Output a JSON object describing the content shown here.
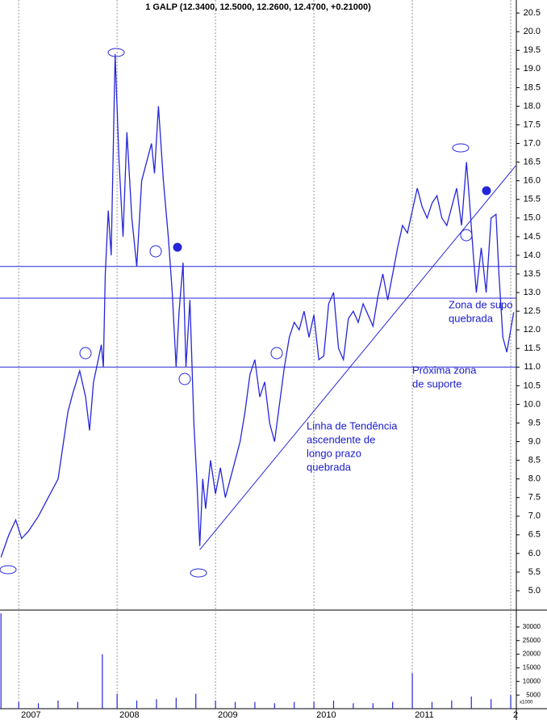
{
  "chart_data": [
    {
      "type": "line",
      "title": "1 GALP (12.3400, 12.5000, 12.2600, 12.4700, +0.21000)",
      "x": [
        2006.82,
        2006.9,
        2006.97,
        2007.03,
        2007.1,
        2007.2,
        2007.3,
        2007.4,
        2007.45,
        2007.5,
        2007.55,
        2007.62,
        2007.68,
        2007.72,
        2007.76,
        2007.8,
        2007.84,
        2007.86,
        2007.88,
        2007.91,
        2007.94,
        2007.98,
        2008.02,
        2008.06,
        2008.1,
        2008.15,
        2008.2,
        2008.25,
        2008.3,
        2008.35,
        2008.38,
        2008.42,
        2008.47,
        2008.52,
        2008.56,
        2008.6,
        2008.63,
        2008.67,
        2008.7,
        2008.74,
        2008.78,
        2008.81,
        2008.84,
        2008.87,
        2008.9,
        2008.95,
        2009.0,
        2009.05,
        2009.1,
        2009.17,
        2009.25,
        2009.3,
        2009.35,
        2009.4,
        2009.45,
        2009.5,
        2009.55,
        2009.6,
        2009.65,
        2009.7,
        2009.75,
        2009.8,
        2009.85,
        2009.9,
        2009.95,
        2010.0,
        2010.05,
        2010.1,
        2010.15,
        2010.2,
        2010.25,
        2010.3,
        2010.35,
        2010.4,
        2010.45,
        2010.5,
        2010.55,
        2010.6,
        2010.65,
        2010.7,
        2010.75,
        2010.8,
        2010.85,
        2010.9,
        2010.95,
        2011.0,
        2011.05,
        2011.1,
        2011.15,
        2011.2,
        2011.25,
        2011.3,
        2011.35,
        2011.4,
        2011.45,
        2011.5,
        2011.55,
        2011.58,
        2011.62,
        2011.65,
        2011.7,
        2011.75,
        2011.8,
        2011.85,
        2011.88,
        2011.92,
        2011.96,
        2012.0,
        2012.03
      ],
      "series": [
        {
          "color": "#2626d9",
          "values": [
            5.9,
            6.5,
            6.9,
            6.4,
            6.6,
            7.0,
            7.5,
            8.0,
            8.9,
            9.8,
            10.3,
            10.9,
            10.2,
            9.3,
            10.6,
            11.1,
            11.6,
            11.0,
            13.5,
            15.2,
            14.0,
            19.4,
            16.5,
            14.5,
            17.3,
            15.0,
            13.7,
            16.0,
            16.5,
            17.0,
            16.2,
            18.0,
            16.0,
            14.5,
            13.0,
            11.0,
            12.5,
            13.8,
            11.0,
            12.8,
            9.5,
            8.0,
            6.2,
            8.0,
            7.2,
            8.5,
            7.6,
            8.3,
            7.5,
            8.2,
            9.0,
            9.8,
            10.8,
            11.2,
            10.2,
            10.6,
            9.5,
            9.0,
            10.0,
            11.0,
            11.8,
            12.2,
            12.0,
            12.5,
            11.8,
            12.4,
            11.2,
            11.3,
            12.7,
            13.0,
            11.5,
            11.2,
            12.3,
            12.5,
            12.2,
            12.7,
            12.4,
            12.1,
            12.9,
            13.5,
            12.8,
            13.5,
            14.2,
            14.8,
            14.6,
            15.2,
            15.8,
            15.3,
            15.0,
            15.4,
            15.6,
            15.0,
            14.8,
            15.3,
            15.8,
            14.8,
            16.5,
            15.5,
            14.0,
            13.0,
            14.2,
            13.0,
            15.0,
            15.1,
            13.5,
            11.8,
            11.4,
            12.0,
            12.47
          ]
        }
      ],
      "xlim": [
        2006.81,
        2012.057
      ],
      "xticks": [
        2007,
        2008,
        2009,
        2010,
        2011,
        {
          "value": 2012,
          "label": "2"
        }
      ],
      "ylim": [
        4.48,
        20.85
      ],
      "yticks": [
        {
          "value": 5,
          "label": "5.0"
        },
        5.5,
        {
          "value": 6,
          "label": "6.0"
        },
        6.5,
        {
          "value": 7,
          "label": "7.0"
        },
        7.5,
        {
          "value": 8,
          "label": "8.0"
        },
        8.5,
        {
          "value": 9,
          "label": "9.0"
        },
        9.5,
        {
          "value": 10,
          "label": "10.0"
        },
        10.5,
        {
          "value": 11,
          "label": "11.0"
        },
        11.5,
        {
          "value": 12,
          "label": "12.0"
        },
        12.5,
        {
          "value": 13,
          "label": "13.0"
        },
        13.5,
        {
          "value": 14,
          "label": "14.0"
        },
        14.5,
        {
          "value": 15,
          "label": "15.0"
        },
        15.5,
        {
          "value": 16,
          "label": "16.0"
        },
        16.5,
        {
          "value": 17,
          "label": "17.0"
        },
        17.5,
        {
          "value": 18,
          "label": "18.0"
        },
        18.5,
        {
          "value": 19,
          "label": "19.0"
        },
        19.5,
        {
          "value": 20,
          "label": "20.0"
        },
        20.5
      ],
      "hlines": [
        13.7,
        12.85,
        11.0
      ],
      "trendline": {
        "x": [
          2008.84,
          2012.05
        ],
        "y": [
          6.1,
          16.4
        ]
      },
      "annotations": [
        [
          "Zona de supo",
          "quebrada"
        ],
        [
          "Próxima zona",
          "de suporte"
        ],
        [
          "Linha de Tendência",
          "ascendente de",
          "longo prazo",
          "quebrada"
        ]
      ]
    },
    {
      "type": "bar",
      "unit_label": "x1000",
      "color": "#2626d9",
      "x": [
        2006.82,
        2007.0,
        2007.2,
        2007.4,
        2007.6,
        2007.85,
        2008.0,
        2008.2,
        2008.4,
        2008.6,
        2008.8,
        2009.0,
        2009.2,
        2009.4,
        2009.6,
        2009.8,
        2010.0,
        2010.2,
        2010.4,
        2010.6,
        2010.8,
        2011.0,
        2011.2,
        2011.4,
        2011.6,
        2011.8,
        2012.0
      ],
      "values": [
        35000,
        2500,
        2000,
        3000,
        2500,
        20000,
        5500,
        3000,
        3500,
        4000,
        5500,
        3000,
        2500,
        2500,
        2000,
        2500,
        2500,
        3000,
        2000,
        2000,
        2500,
        13000,
        2500,
        3000,
        4500,
        3500,
        5000
      ],
      "xlim": [
        2006.81,
        2012.057
      ],
      "ylim": [
        0,
        36200
      ],
      "yticks": [
        5000,
        10000,
        15000,
        20000,
        25000,
        30000
      ]
    }
  ]
}
